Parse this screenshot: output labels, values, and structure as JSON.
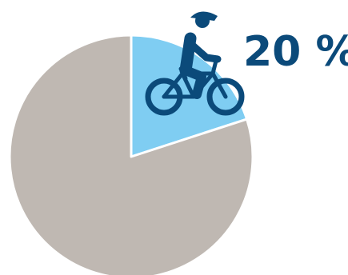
{
  "chart_data": {
    "type": "pie",
    "slices": [
      {
        "value": 20,
        "color": "#7fcdf2",
        "icon": "cyclist-icon"
      },
      {
        "value": 80,
        "color": "#bfb8b2"
      }
    ],
    "data_labels": [
      "20 %"
    ],
    "legend": "none"
  },
  "colors": {
    "icon": "#0b4a7a",
    "label": "#0b4a7a",
    "divider": "#ffffff"
  }
}
